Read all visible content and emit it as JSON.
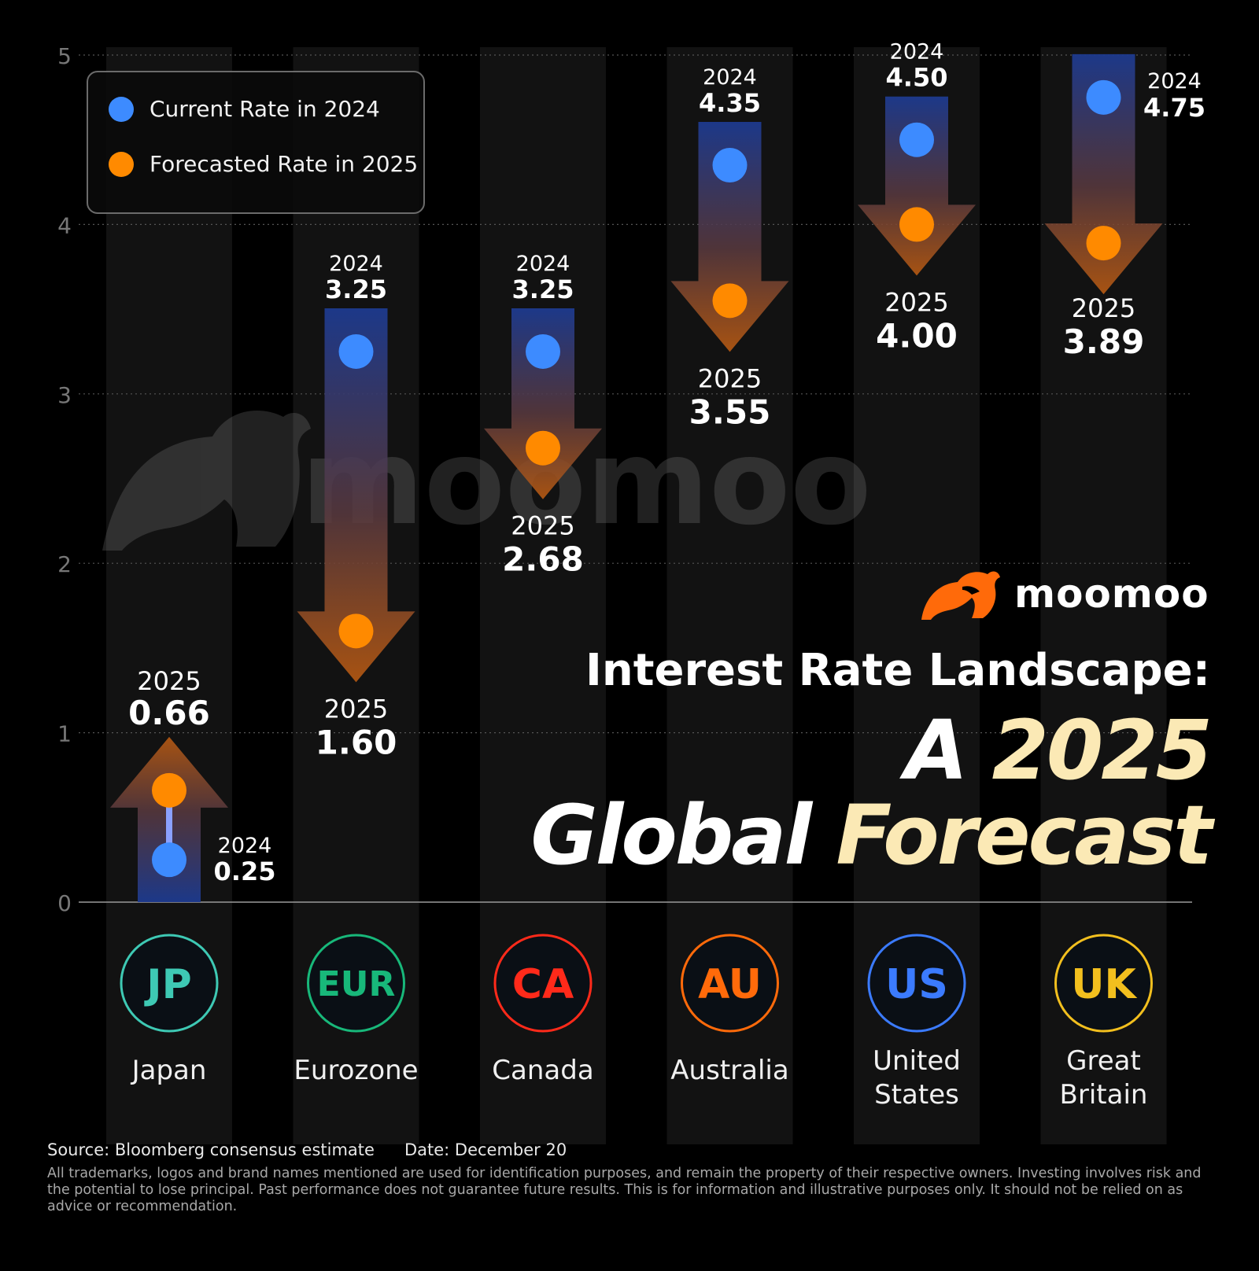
{
  "chart_data": {
    "type": "dumbbell",
    "title": "Interest Rate Landscape:",
    "subtitle": "A 2025 Global Forecast",
    "ylim": [
      0,
      5
    ],
    "yticks": [
      0,
      1,
      2,
      3,
      4,
      5
    ],
    "grid": true,
    "legend_position": "top-left",
    "series": [
      {
        "name": "Current Rate in 2024",
        "color": "#3d8bff"
      },
      {
        "name": "Forecasted Rate in 2025",
        "color": "#ff8a00"
      }
    ],
    "year_labels": {
      "current": "2024",
      "forecast": "2025"
    },
    "countries": [
      {
        "code": "JP",
        "name": "Japan",
        "current": 0.25,
        "forecast": 0.66,
        "current_label": "0.25",
        "forecast_label": "0.66",
        "badge_color": "#3ec9b4"
      },
      {
        "code": "EUR",
        "name": "Eurozone",
        "current": 3.25,
        "forecast": 1.6,
        "current_label": "3.25",
        "forecast_label": "1.60",
        "badge_color": "#18b87a"
      },
      {
        "code": "CA",
        "name": "Canada",
        "current": 3.25,
        "forecast": 2.68,
        "current_label": "3.25",
        "forecast_label": "2.68",
        "badge_color": "#ff2a1a"
      },
      {
        "code": "AU",
        "name": "Australia",
        "current": 4.35,
        "forecast": 3.55,
        "current_label": "4.35",
        "forecast_label": "3.55",
        "badge_color": "#ff6a0a"
      },
      {
        "code": "US",
        "name_lines": [
          "United",
          "States"
        ],
        "current": 4.5,
        "forecast": 4.0,
        "current_label": "4.50",
        "forecast_label": "4.00",
        "badge_color": "#3b7bff"
      },
      {
        "code": "UK",
        "name_lines": [
          "Great",
          "Britain"
        ],
        "current": 4.75,
        "forecast": 3.89,
        "current_label": "4.75",
        "forecast_label": "3.89",
        "badge_color": "#f2bf1e"
      }
    ]
  },
  "legend": {
    "current_label": "Current Rate in 2024",
    "forecast_label": "Forecasted Rate in 2025"
  },
  "brand": {
    "logo_text": "moomoo",
    "watermark_text": "moomoo",
    "accent": "#ff7a00"
  },
  "title": {
    "line1": "Interest Rate Landscape:",
    "line2_white": "A ",
    "line2_highlight": "2025",
    "line3_white": "Global ",
    "line3_highlight": "Forecast"
  },
  "footer": {
    "source": "Source: Bloomberg consensus estimate",
    "date": "Date: December 20",
    "disclaimer": "All trademarks, logos and brand names mentioned are used for identification purposes, and remain the property of their respective owners. Investing involves risk and the potential to lose principal. Past performance does not guarantee future results. This is for information and illustrative purposes only. It should not be relied on as advice or recommendation."
  }
}
